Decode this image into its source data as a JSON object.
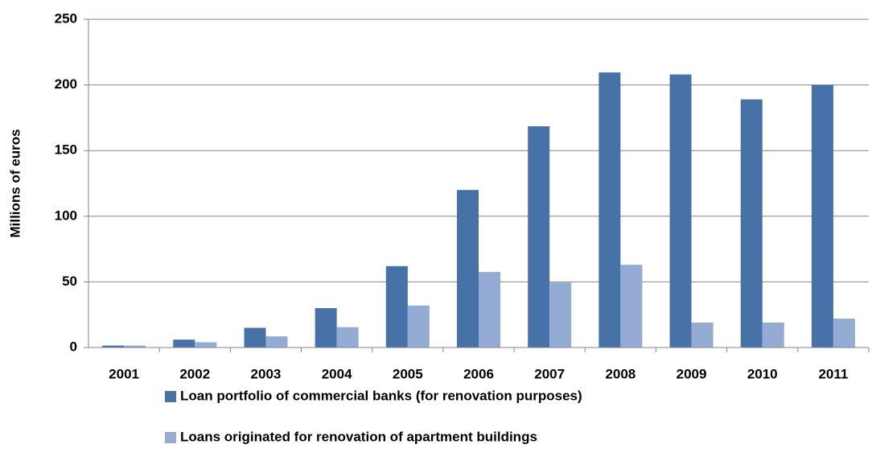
{
  "chart_data": {
    "type": "bar",
    "y_label": "Millions of euros",
    "categories": [
      "2001",
      "2002",
      "2003",
      "2004",
      "2005",
      "2006",
      "2007",
      "2008",
      "2009",
      "2010",
      "2011"
    ],
    "series": [
      {
        "name": "Loan portfolio of commercial banks (for renovation purposes)",
        "color": "#4672a8",
        "values": [
          1.5,
          6,
          15,
          30,
          62,
          120,
          168.5,
          209.5,
          208,
          189,
          200
        ]
      },
      {
        "name": "Loans originated for renovation of apartment buildings",
        "color": "#94abd4",
        "values": [
          1.5,
          4,
          8.5,
          15.5,
          32,
          57.5,
          49.5,
          63,
          19,
          19,
          22
        ]
      }
    ],
    "ylim": [
      0,
      250
    ],
    "yticks": [
      0,
      50,
      100,
      150,
      200,
      250
    ],
    "grid": true
  }
}
